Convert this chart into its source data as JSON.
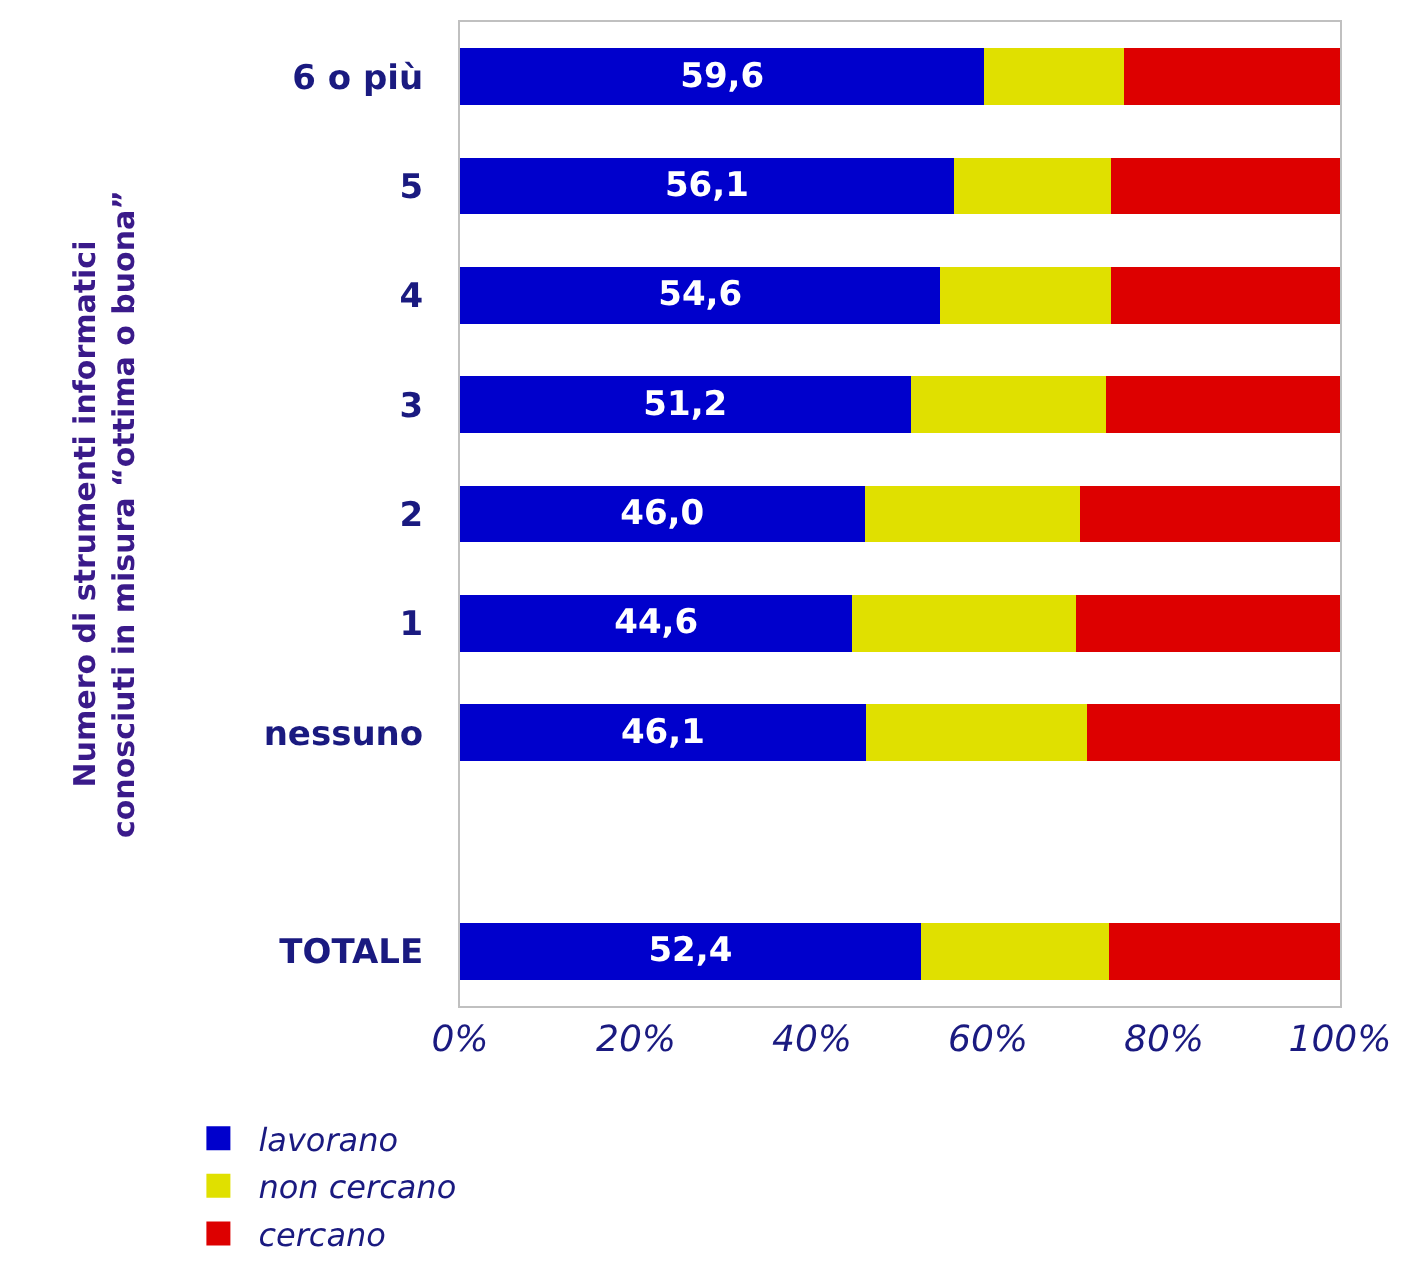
{
  "chart_data": {
    "type": "bar",
    "orientation": "horizontal",
    "stacked": true,
    "ylabel": "Numero di strumenti informatici\nconosciuti in misura “ottima o buona”",
    "categories": [
      "6 o più",
      "5",
      "4",
      "3",
      "2",
      "1",
      "nessuno",
      null,
      "TOTALE"
    ],
    "series": [
      {
        "name": "lavorano",
        "color": "#0000cc",
        "values": [
          59.6,
          56.1,
          54.6,
          51.2,
          46.0,
          44.6,
          46.1,
          null,
          52.4
        ],
        "value_labels": [
          "59,6",
          "56,1",
          "54,6",
          "51,2",
          "46,0",
          "44,6",
          "46,1",
          null,
          "52,4"
        ]
      },
      {
        "name": "non cercano",
        "color": "#e0e000",
        "values": [
          15.8,
          17.9,
          19.4,
          22.2,
          24.4,
          25.4,
          25.2,
          null,
          21.4
        ]
      },
      {
        "name": "cercano",
        "color": "#dd0000",
        "values": [
          24.6,
          26.0,
          26.0,
          26.6,
          29.6,
          30.0,
          28.7,
          null,
          26.2
        ]
      }
    ],
    "xlim": [
      0,
      100
    ],
    "xticks": [
      {
        "value": 0,
        "label": "0%"
      },
      {
        "value": 20,
        "label": "20%"
      },
      {
        "value": 40,
        "label": "40%"
      },
      {
        "value": 60,
        "label": "60%"
      },
      {
        "value": 80,
        "label": "80%"
      },
      {
        "value": 100,
        "label": "100%"
      }
    ],
    "legend": "bottom left"
  }
}
